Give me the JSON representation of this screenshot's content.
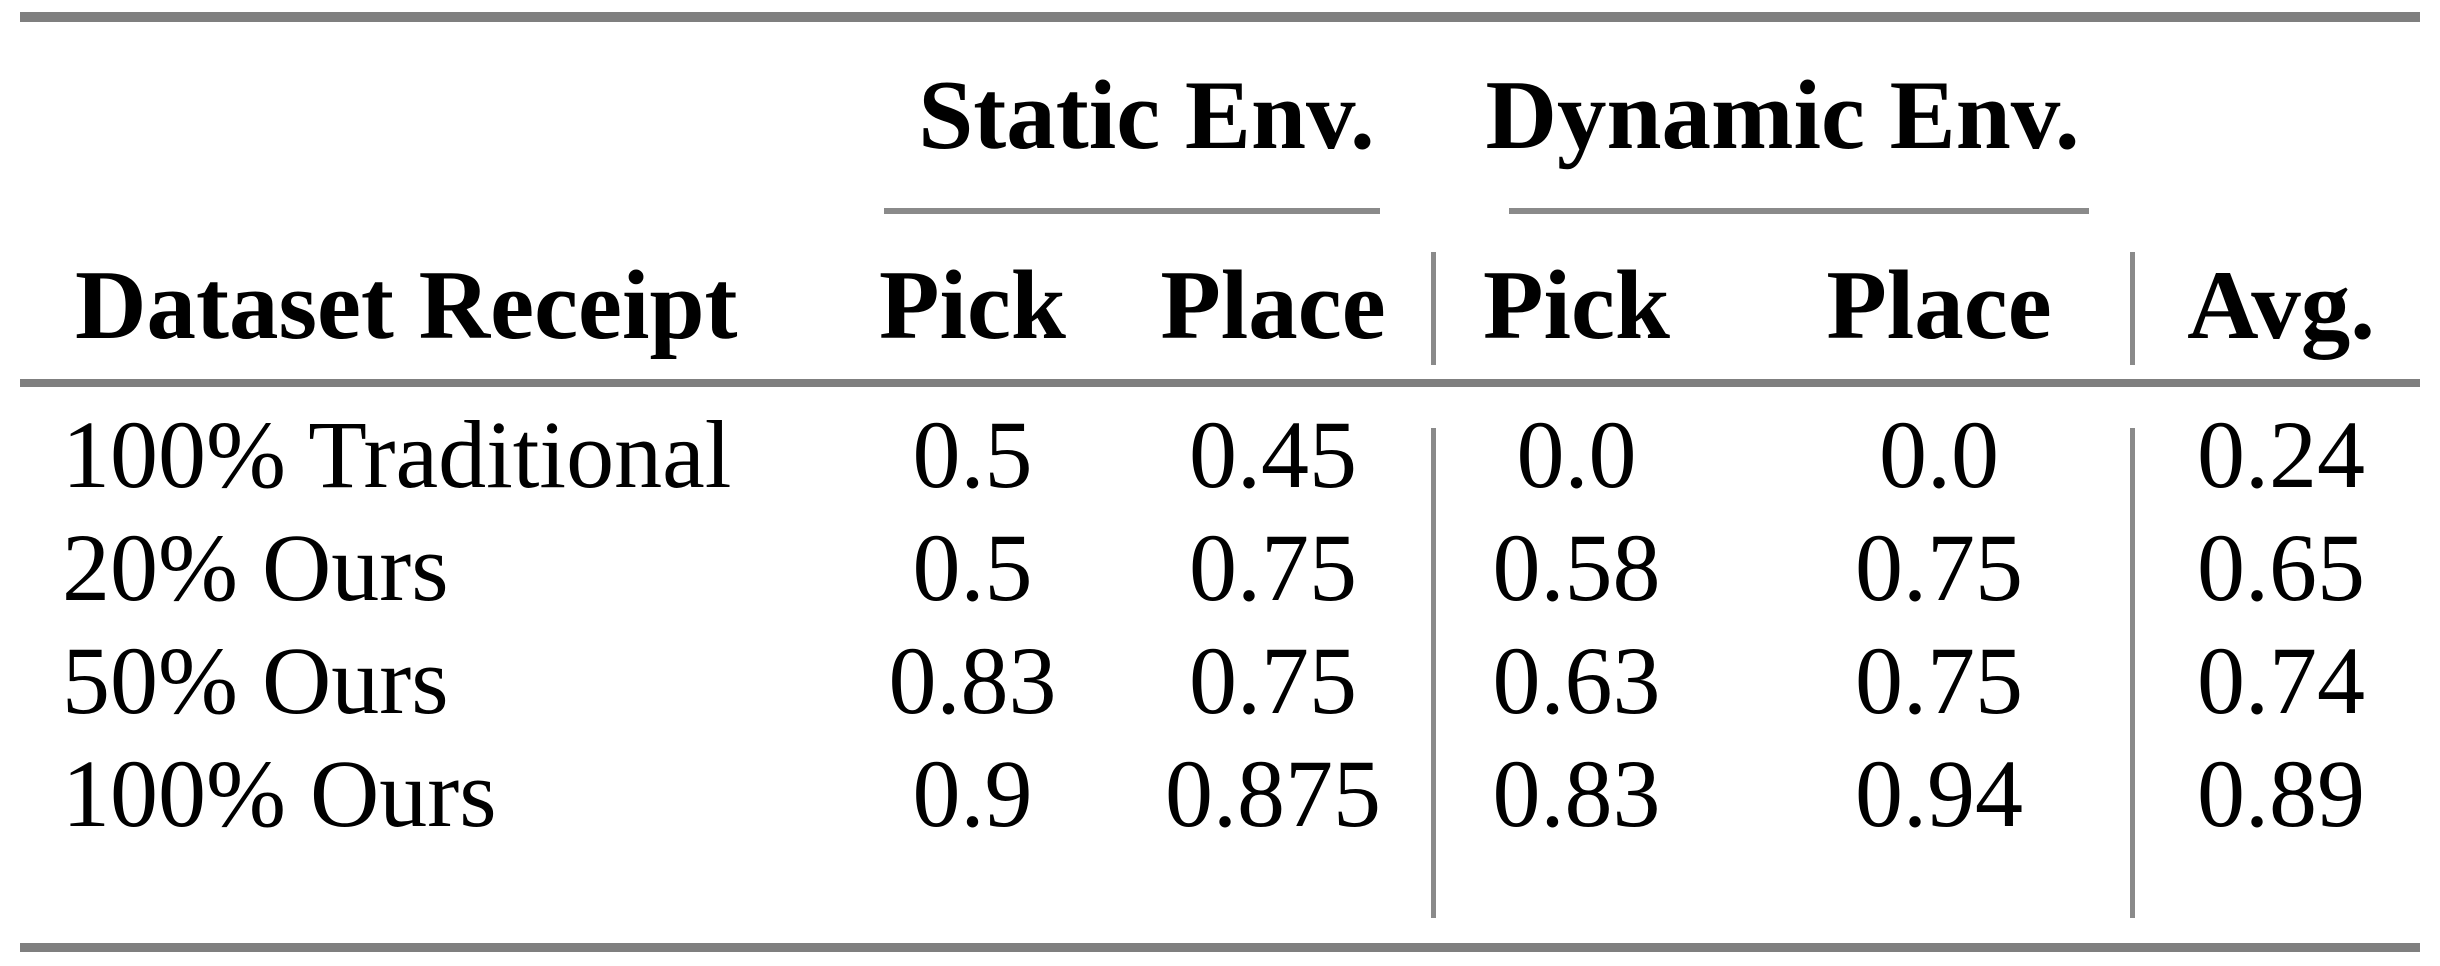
{
  "table": {
    "group_headers": {
      "static": "Static Env.",
      "dynamic": "Dynamic Env."
    },
    "columns": {
      "dataset": "Dataset Receipt",
      "static_pick": "Pick",
      "static_place": "Place",
      "dynamic_pick": "Pick",
      "dynamic_place": "Place",
      "avg": "Avg."
    },
    "rows": [
      {
        "label": "100% Traditional",
        "static_pick": "0.5",
        "static_place": "0.45",
        "dynamic_pick": "0.0",
        "dynamic_place": "0.0",
        "avg": "0.24"
      },
      {
        "label": "20% Ours",
        "static_pick": "0.5",
        "static_place": "0.75",
        "dynamic_pick": "0.58",
        "dynamic_place": "0.75",
        "avg": "0.65"
      },
      {
        "label": "50% Ours",
        "static_pick": "0.83",
        "static_place": "0.75",
        "dynamic_pick": "0.63",
        "dynamic_place": "0.75",
        "avg": "0.74"
      },
      {
        "label": "100% Ours",
        "static_pick": "0.9",
        "static_place": "0.875",
        "dynamic_pick": "0.83",
        "dynamic_place": "0.94",
        "avg": "0.89"
      }
    ],
    "colors": {
      "rule": "#7f7f7f",
      "thin_rule": "#8a8a8a",
      "text": "#000000",
      "background": "#ffffff"
    }
  },
  "chart_data": {
    "type": "table",
    "column_groups": [
      "",
      "Static Env.",
      "Static Env.",
      "Dynamic Env.",
      "Dynamic Env.",
      ""
    ],
    "columns": [
      "Dataset Receipt",
      "Pick",
      "Place",
      "Pick",
      "Place",
      "Avg."
    ],
    "rows": [
      [
        "100% Traditional",
        0.5,
        0.45,
        0.0,
        0.0,
        0.24
      ],
      [
        "20% Ours",
        0.5,
        0.75,
        0.58,
        0.75,
        0.65
      ],
      [
        "50% Ours",
        0.83,
        0.75,
        0.63,
        0.75,
        0.74
      ],
      [
        "100% Ours",
        0.9,
        0.875,
        0.83,
        0.94,
        0.89
      ]
    ]
  }
}
